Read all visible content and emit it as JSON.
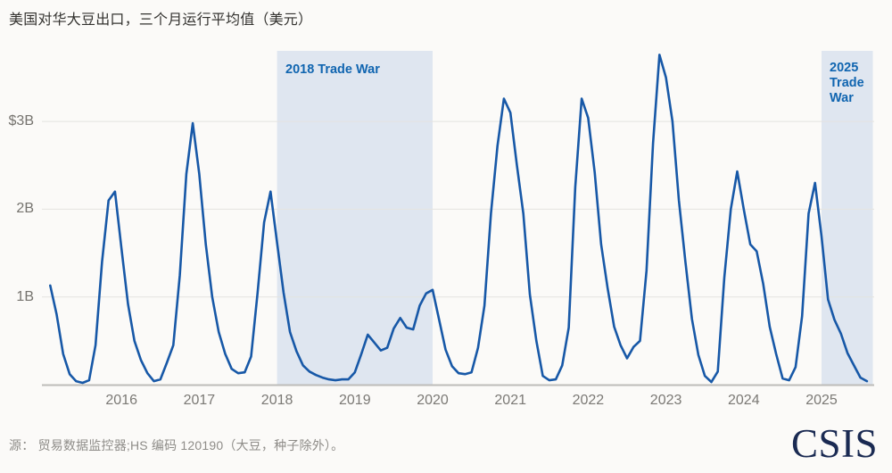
{
  "title": "美国对华大豆出口，三个月运行平均值（美元）",
  "source": "源： 贸易数据监控器;HS 编码 120190（大豆，种子除外）。",
  "logo_text": "CSIS",
  "colors": {
    "line": "#1758a7",
    "region_fill": "#dfe6f0",
    "region_label": "#1065b0",
    "grid": "#e4e3e0",
    "baseline": "#bdbcb9",
    "background": "#fbfaf8",
    "logo": "#1a2a52"
  },
  "chart_data": {
    "type": "line",
    "title": "美国对华大豆出口，三个月运行平均值（美元）",
    "unit": "USD billions",
    "frequency": "monthly, 3-month running average",
    "start": "2015-02",
    "end": "2025-08",
    "ylim": [
      0,
      3.8
    ],
    "grid": true,
    "values": [
      1.13,
      0.8,
      0.35,
      0.12,
      0.04,
      0.02,
      0.05,
      0.45,
      1.4,
      2.1,
      2.2,
      1.55,
      0.92,
      0.5,
      0.28,
      0.13,
      0.04,
      0.06,
      0.25,
      0.45,
      1.25,
      2.4,
      2.98,
      2.4,
      1.6,
      1.0,
      0.6,
      0.35,
      0.18,
      0.13,
      0.14,
      0.32,
      1.05,
      1.85,
      2.2,
      1.62,
      1.05,
      0.6,
      0.38,
      0.22,
      0.15,
      0.11,
      0.08,
      0.06,
      0.05,
      0.06,
      0.06,
      0.14,
      0.35,
      0.57,
      0.48,
      0.39,
      0.42,
      0.64,
      0.76,
      0.65,
      0.63,
      0.9,
      1.04,
      1.08,
      0.74,
      0.4,
      0.21,
      0.13,
      0.12,
      0.14,
      0.42,
      0.9,
      1.95,
      2.72,
      3.26,
      3.1,
      2.5,
      1.95,
      1.03,
      0.5,
      0.1,
      0.05,
      0.06,
      0.22,
      0.65,
      2.25,
      3.26,
      3.04,
      2.42,
      1.6,
      1.1,
      0.66,
      0.45,
      0.3,
      0.43,
      0.5,
      1.3,
      2.75,
      3.76,
      3.5,
      3.0,
      2.1,
      1.4,
      0.75,
      0.34,
      0.1,
      0.03,
      0.15,
      1.22,
      2.0,
      2.43,
      2.0,
      1.6,
      1.52,
      1.15,
      0.66,
      0.35,
      0.07,
      0.05,
      0.2,
      0.78,
      1.95,
      2.3,
      1.69,
      0.97,
      0.74,
      0.58,
      0.36,
      0.22,
      0.08,
      0.04
    ],
    "yticks": [
      {
        "label": "$3B",
        "value": 3
      },
      {
        "label": "2B",
        "value": 2
      },
      {
        "label": "1B",
        "value": 1
      }
    ],
    "xticks": [
      2016,
      2017,
      2018,
      2019,
      2020,
      2021,
      2022,
      2023,
      2024,
      2025
    ],
    "regions": [
      {
        "label": "2018 Trade War",
        "from": 2018.0,
        "to": 2020.0
      },
      {
        "label": "2025 Trade War",
        "from": 2025.0,
        "to": 2025.66
      }
    ]
  }
}
